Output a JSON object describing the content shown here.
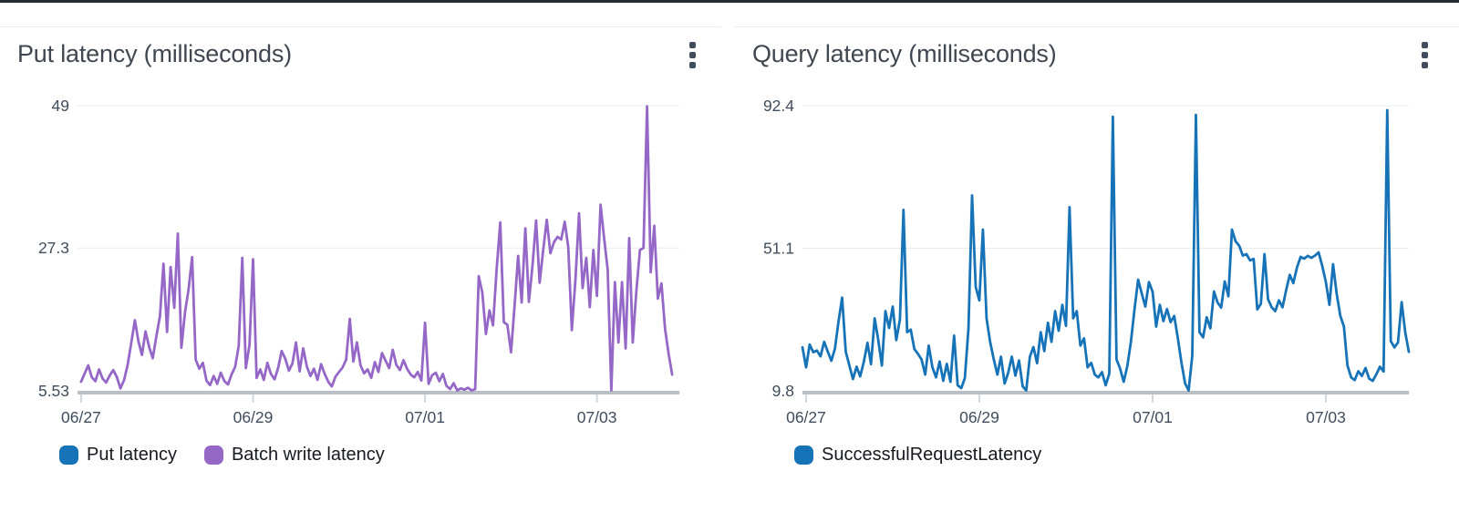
{
  "colors": {
    "top_bar": "#272c31",
    "card_border": "#e9ebec",
    "title_text": "#414750",
    "axis_text": "#414d5c",
    "legend_text": "#16191f",
    "gridline": "#e9ebed",
    "axis_line": "#b9bfc7",
    "tick_mark": "#d2d7dc",
    "menu_icon": "#414d5c",
    "series_blue": "#1773b8",
    "series_purple": "#9568c8"
  },
  "panels": [
    {
      "title": "Put latency (milliseconds)",
      "menu_label": "Widget menu"
    },
    {
      "title": "Query latency (milliseconds)",
      "menu_label": "Widget menu"
    }
  ],
  "chart_data": [
    {
      "type": "line",
      "title": "Put latency (milliseconds)",
      "x_axis": {
        "tick_labels": [
          "06/27",
          "06/29",
          "07/01",
          "07/03"
        ],
        "tick_hours": [
          1,
          49,
          97,
          145
        ],
        "domain_hours": [
          0,
          168
        ],
        "unit": "date"
      },
      "y_axis": {
        "tick_labels": [
          "49",
          "27.3",
          "5.53"
        ],
        "max": 49,
        "mid": 27.3,
        "min": 5.53,
        "unit": "milliseconds"
      },
      "grid": "horizontal",
      "legend_position": "bottom-left",
      "series": [
        {
          "name": "Put latency",
          "color": "#1773b8",
          "x_start_hour": 0,
          "x_step_hours": 1,
          "values": []
        },
        {
          "name": "Batch write latency",
          "color": "#9568c8",
          "x_start_hour": 1,
          "x_step_hours": 1,
          "values": [
            6.9,
            8.2,
            9.4,
            7.6,
            7.0,
            8.8,
            7.4,
            6.8,
            7.9,
            8.7,
            7.6,
            5.9,
            7.2,
            9.5,
            12.8,
            16.3,
            13.1,
            11.0,
            14.6,
            12.2,
            10.5,
            13.8,
            16.9,
            24.9,
            14.5,
            24.4,
            18.2,
            29.5,
            12.1,
            17.5,
            21.0,
            25.9,
            10.3,
            8.9,
            9.8,
            7.1,
            6.4,
            7.8,
            6.6,
            8.3,
            7.0,
            6.5,
            8.0,
            9.2,
            12.4,
            25.8,
            9.0,
            12.5,
            25.6,
            7.5,
            8.8,
            7.2,
            9.8,
            8.1,
            7.3,
            9.0,
            11.6,
            10.4,
            8.6,
            9.7,
            12.9,
            8.5,
            12.0,
            9.3,
            7.8,
            8.9,
            7.2,
            9.6,
            8.1,
            6.9,
            6.2,
            7.7,
            8.4,
            9.1,
            10.3,
            16.5,
            10.0,
            12.9,
            9.4,
            8.2,
            8.8,
            7.5,
            9.9,
            8.4,
            11.3,
            10.1,
            9.0,
            11.8,
            9.5,
            8.7,
            10.2,
            8.9,
            8.0,
            7.6,
            8.4,
            7.1,
            15.9,
            6.6,
            7.9,
            8.3,
            7.0,
            8.1,
            6.3,
            5.8,
            6.7,
            5.6,
            5.9,
            5.7,
            6.0,
            5.6,
            5.8,
            23.0,
            20.5,
            14.2,
            17.8,
            15.5,
            24.0,
            31.2,
            16.0,
            15.6,
            11.4,
            18.5,
            26.1,
            19.0,
            30.3,
            19.1,
            24.5,
            31.5,
            22.0,
            27.0,
            31.6,
            26.5,
            28.2,
            29.0,
            28.6,
            31.3,
            27.4,
            14.8,
            22.6,
            32.6,
            21.2,
            25.8,
            18.3,
            27.0,
            20.0,
            33.9,
            28.8,
            24.0,
            5.6,
            22.1,
            12.9,
            22.1,
            12.0,
            28.8,
            12.9,
            20.8,
            27.0,
            27.3,
            48.9,
            23.6,
            30.7,
            19.6,
            21.9,
            15.0,
            11.2,
            8.0
          ]
        }
      ]
    },
    {
      "type": "line",
      "title": "Query latency (milliseconds)",
      "x_axis": {
        "tick_labels": [
          "06/27",
          "06/29",
          "07/01",
          "07/03"
        ],
        "tick_hours": [
          1,
          49,
          97,
          145
        ],
        "domain_hours": [
          0,
          168
        ],
        "unit": "date"
      },
      "y_axis": {
        "tick_labels": [
          "92.4",
          "51.1",
          "9.8"
        ],
        "max": 92.4,
        "mid": 51.1,
        "min": 9.8,
        "unit": "milliseconds"
      },
      "grid": "horizontal",
      "legend_position": "bottom-left",
      "series": [
        {
          "name": "SuccessfulRequestLatency",
          "color": "#1773b8",
          "x_start_hour": 0,
          "x_step_hours": 1,
          "values": [
            22.4,
            16.6,
            23.2,
            21.0,
            21.5,
            19.8,
            24.0,
            21.2,
            18.5,
            22.0,
            30.0,
            36.8,
            21.1,
            17.1,
            13.2,
            16.8,
            14.0,
            18.2,
            23.7,
            17.5,
            30.8,
            24.6,
            17.1,
            32.9,
            28.0,
            34.2,
            24.5,
            30.5,
            62.2,
            26.8,
            27.5,
            21.9,
            20.5,
            18.9,
            14.5,
            22.9,
            16.6,
            13.7,
            18.3,
            12.7,
            17.6,
            12.4,
            25.8,
            11.4,
            10.6,
            13.5,
            28.0,
            66.4,
            39.9,
            36.0,
            56.5,
            30.8,
            24.0,
            18.9,
            14.5,
            19.7,
            11.9,
            15.0,
            19.7,
            14.2,
            18.6,
            11.1,
            9.9,
            19.7,
            22.5,
            17.8,
            26.8,
            21.3,
            29.5,
            24.0,
            32.9,
            27.2,
            34.7,
            28.6,
            63.0,
            30.8,
            32.9,
            22.9,
            25.0,
            16.6,
            17.9,
            14.5,
            13.7,
            15.2,
            11.4,
            14.8,
            89.2,
            18.9,
            16.3,
            12.4,
            17.0,
            24.0,
            33.5,
            42.0,
            38.0,
            34.2,
            41.3,
            38.5,
            28.4,
            34.7,
            30.0,
            33.5,
            29.7,
            31.5,
            25.0,
            18.0,
            12.0,
            9.9,
            20.0,
            89.7,
            26.8,
            25.3,
            31.1,
            27.9,
            38.6,
            35.4,
            33.9,
            41.5,
            37.2,
            56.5,
            53.1,
            51.8,
            49.0,
            49.4,
            47.6,
            48.0,
            33.4,
            35.0,
            49.4,
            36.3,
            34.0,
            32.9,
            36.0,
            34.0,
            38.9,
            43.4,
            41.0,
            45.5,
            48.6,
            48.1,
            48.9,
            48.3,
            49.0,
            49.9,
            46.0,
            41.3,
            34.7,
            46.5,
            38.0,
            31.6,
            28.4,
            17.1,
            13.7,
            12.9,
            15.5,
            14.1,
            16.4,
            13.3,
            12.7,
            14.6,
            16.8,
            15.4,
            91.1,
            24.2,
            22.4,
            23.8,
            35.5,
            26.8,
            21.1
          ]
        }
      ]
    }
  ]
}
